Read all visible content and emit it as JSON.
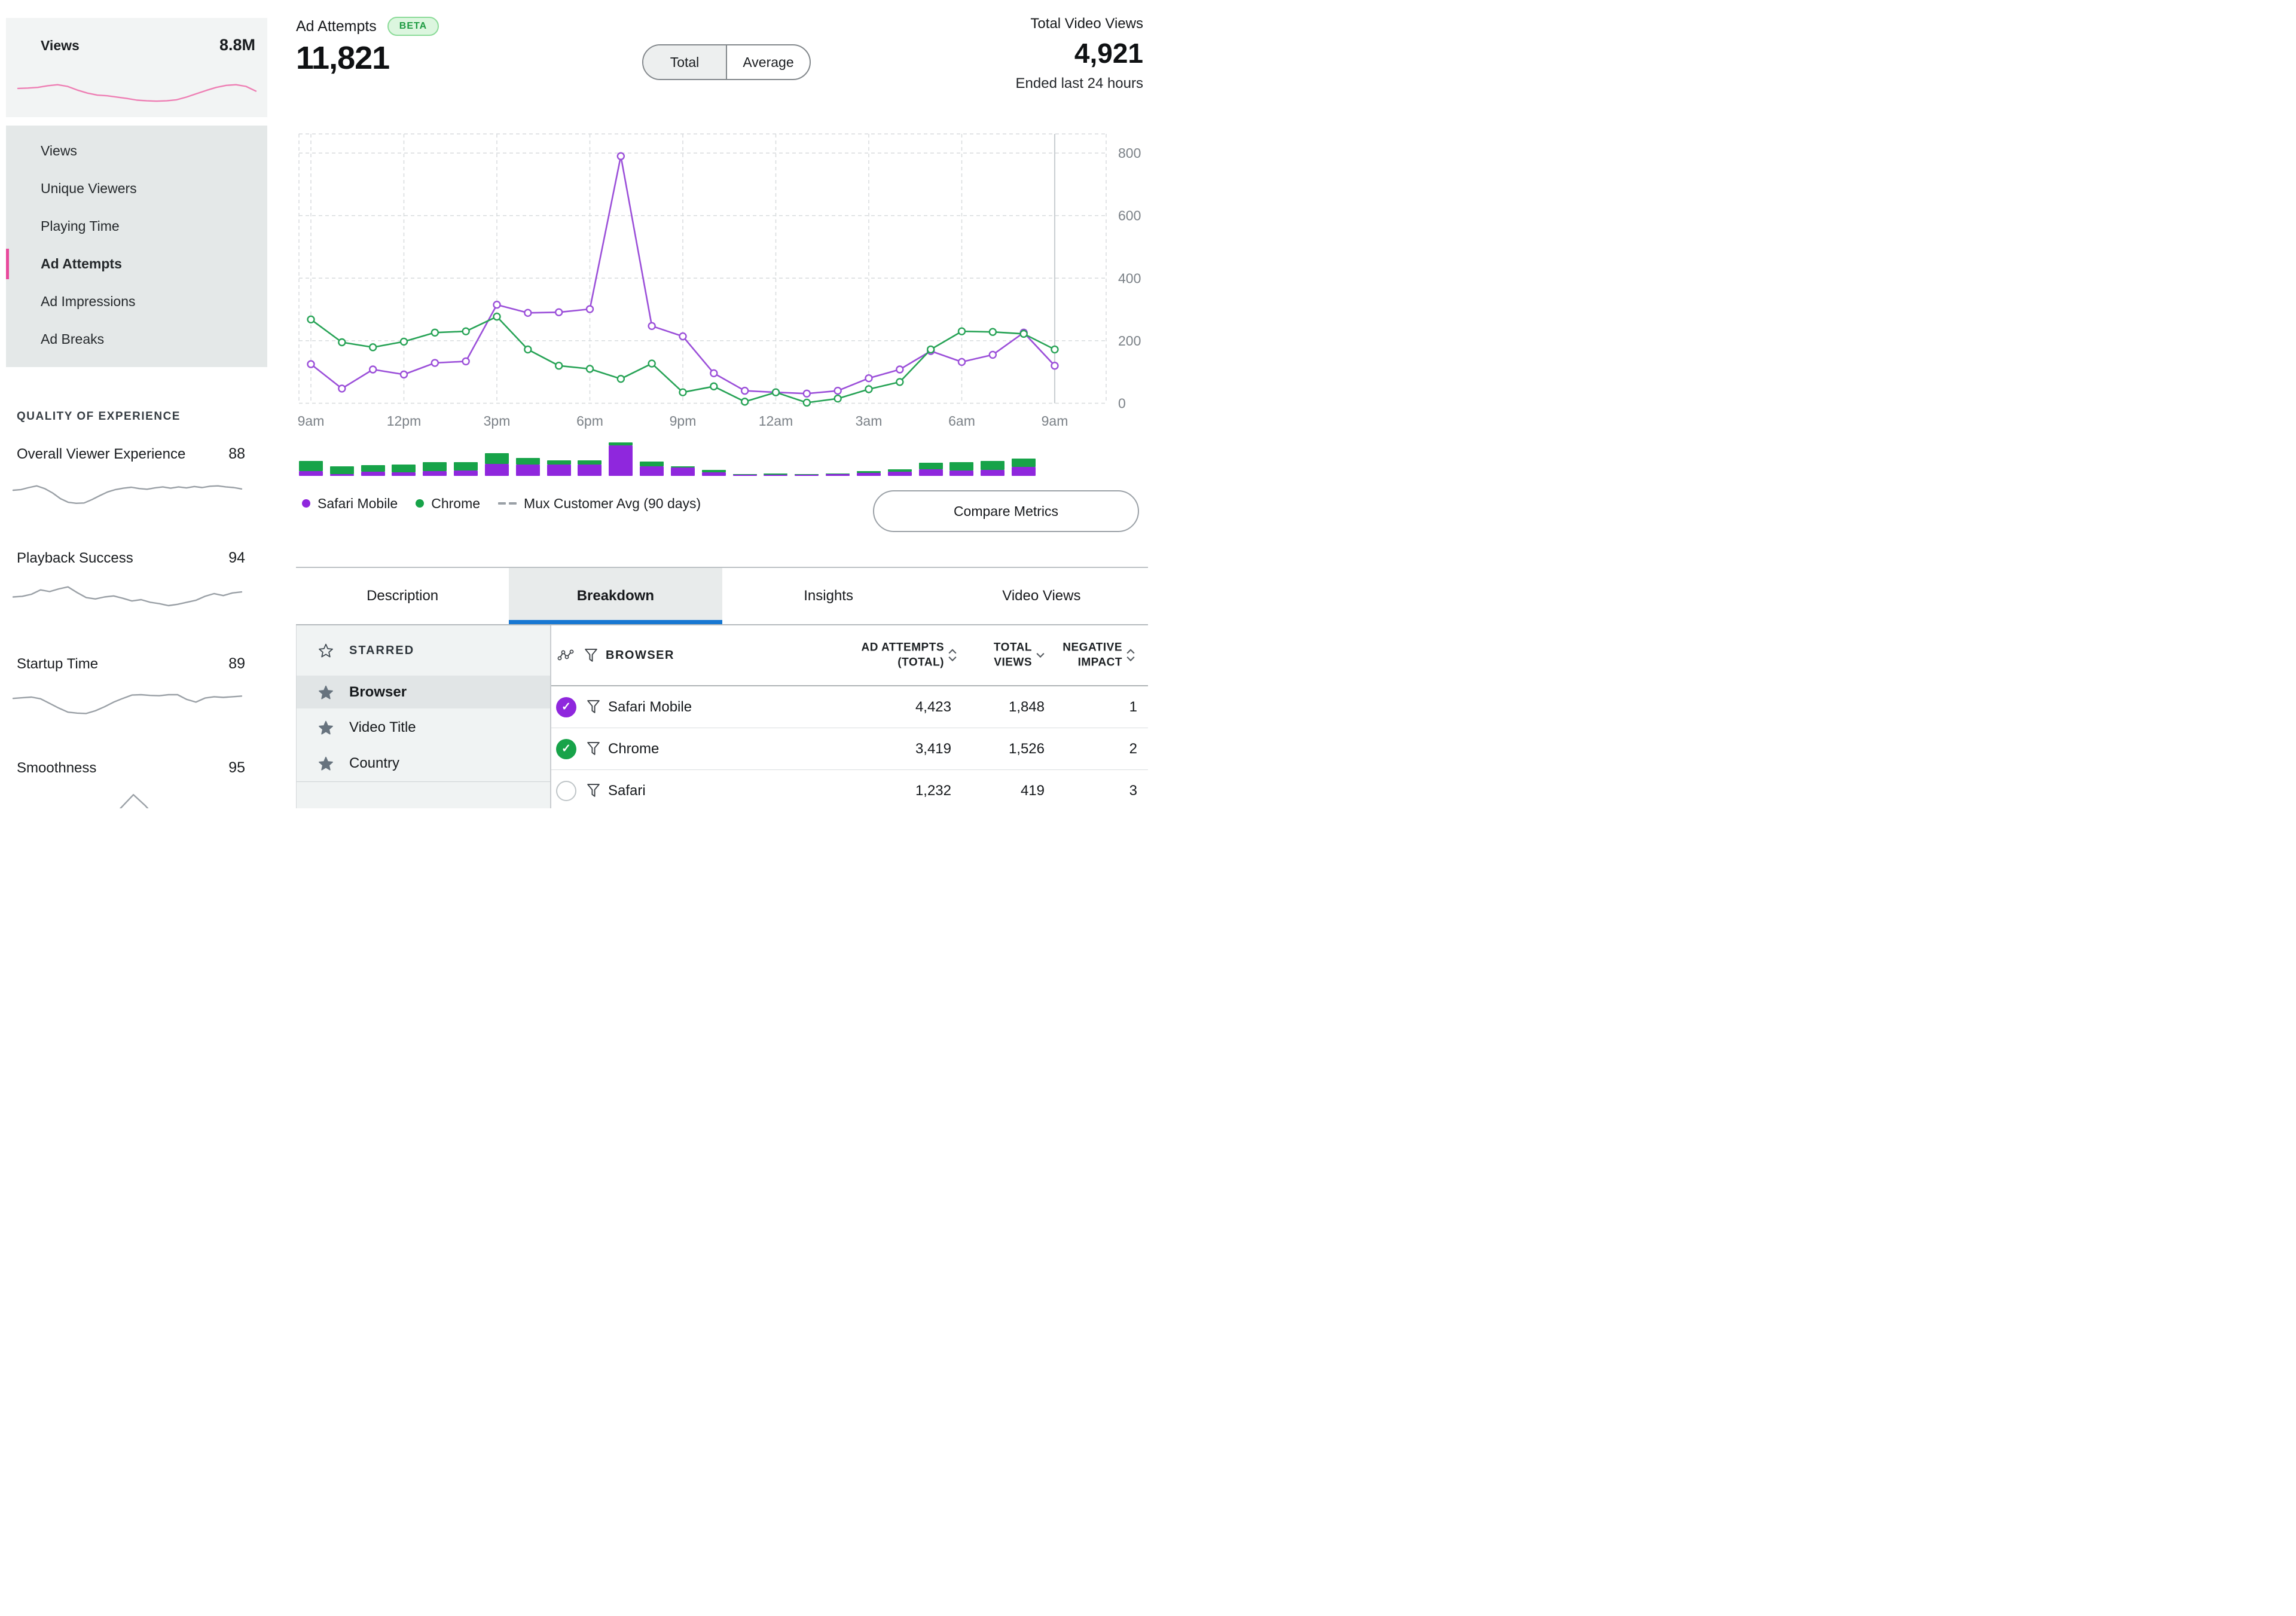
{
  "sidebar": {
    "summary": {
      "label": "Views",
      "value": "8.8M",
      "spark": [
        0.52,
        0.53,
        0.55,
        0.6,
        0.63,
        0.58,
        0.47,
        0.38,
        0.32,
        0.3,
        0.26,
        0.22,
        0.17,
        0.15,
        0.14,
        0.15,
        0.18,
        0.26,
        0.36,
        0.46,
        0.55,
        0.61,
        0.63,
        0.58,
        0.44
      ]
    },
    "menu": {
      "items": [
        "Views",
        "Unique Viewers",
        "Playing Time",
        "Ad Attempts",
        "Ad Impressions",
        "Ad Breaks"
      ],
      "active": "Ad Attempts"
    },
    "qoe": {
      "heading": "QUALITY OF EXPERIENCE",
      "items": [
        {
          "label": "Overall Viewer Experience",
          "value": "88",
          "spark": [
            0.5,
            0.52,
            0.58,
            0.63,
            0.55,
            0.42,
            0.25,
            0.14,
            0.11,
            0.12,
            0.22,
            0.34,
            0.45,
            0.52,
            0.56,
            0.59,
            0.55,
            0.53,
            0.57,
            0.6,
            0.56,
            0.6,
            0.57,
            0.61,
            0.58,
            0.62,
            0.63,
            0.6,
            0.58,
            0.54
          ]
        },
        {
          "label": "Playback Success",
          "value": "94",
          "spark": [
            0.42,
            0.44,
            0.5,
            0.63,
            0.58,
            0.66,
            0.72,
            0.55,
            0.4,
            0.36,
            0.42,
            0.45,
            0.38,
            0.3,
            0.34,
            0.26,
            0.22,
            0.16,
            0.2,
            0.26,
            0.32,
            0.44,
            0.52,
            0.46,
            0.54,
            0.57
          ]
        },
        {
          "label": "Startup Time",
          "value": "89",
          "spark": [
            0.55,
            0.57,
            0.59,
            0.54,
            0.4,
            0.26,
            0.14,
            0.11,
            0.1,
            0.18,
            0.3,
            0.44,
            0.55,
            0.65,
            0.66,
            0.64,
            0.63,
            0.66,
            0.66,
            0.52,
            0.44,
            0.56,
            0.6,
            0.58,
            0.6,
            0.62
          ]
        },
        {
          "label": "Smoothness",
          "value": "95",
          "spark": [
            0.05,
            0.05,
            0.05,
            0.05,
            0.05,
            0.05,
            0.05,
            0.05,
            0.05,
            0.4,
            0.78,
            0.45,
            0.05,
            0.05,
            0.05,
            0.05,
            0.05,
            0.05,
            0.05,
            0.05
          ]
        }
      ]
    }
  },
  "header": {
    "metric_label": "Ad Attempts",
    "beta_badge": "BETA",
    "metric_value": "11,821",
    "toggle": {
      "options": [
        "Total",
        "Average"
      ],
      "active": "Total"
    },
    "totals": {
      "label": "Total Video Views",
      "value": "4,921",
      "subtitle": "Ended last 24 hours"
    }
  },
  "chart_data": {
    "type": "line",
    "x_hours": [
      "9am",
      "10am",
      "11am",
      "12pm",
      "1pm",
      "2pm",
      "3pm",
      "4pm",
      "5pm",
      "6pm",
      "7pm",
      "8pm",
      "9pm",
      "10pm",
      "11pm",
      "12am",
      "1am",
      "2am",
      "3am",
      "4am",
      "5am",
      "6am",
      "7am",
      "8am",
      "9am"
    ],
    "x_tick_labels": [
      "9am",
      "12pm",
      "3pm",
      "6pm",
      "9pm",
      "12am",
      "3am",
      "6am",
      "9am"
    ],
    "ylim": [
      0,
      800
    ],
    "yticks": [
      800,
      600,
      400,
      200,
      0
    ],
    "grid": "dashed",
    "legend_position": "bottom-left",
    "series": [
      {
        "name": "Safari Mobile",
        "color": "#9b4fd9",
        "fill_color": "#8f27dd",
        "values": [
          125,
          47,
          108,
          92,
          129,
          134,
          315,
          289,
          291,
          301,
          790,
          247,
          214,
          96,
          40,
          35,
          31,
          40,
          80,
          108,
          167,
          132,
          155,
          226,
          120
        ]
      },
      {
        "name": "Chrome",
        "color": "#27a356",
        "fill_color": "#17a349",
        "values": [
          268,
          195,
          179,
          197,
          226,
          230,
          277,
          172,
          120,
          110,
          78,
          127,
          35,
          54,
          5,
          35,
          2,
          15,
          45,
          68,
          172,
          230,
          228,
          222,
          172
        ]
      }
    ],
    "bars": {
      "type": "stacked-bar",
      "hours": 24,
      "description": "hourly stacked totals of the two series, Safari Mobile bottom / Chrome top"
    },
    "legend": [
      {
        "label": "Safari Mobile",
        "swatch": "dot",
        "color": "#8f27dd"
      },
      {
        "label": "Chrome",
        "swatch": "dot",
        "color": "#17a349"
      },
      {
        "label": "Mux Customer Avg (90 days)",
        "swatch": "dash",
        "color": "#9aa0a6"
      }
    ]
  },
  "compare_button": "Compare Metrics",
  "tabs": {
    "items": [
      "Description",
      "Breakdown",
      "Insights",
      "Video Views"
    ],
    "active": "Breakdown"
  },
  "breakdown": {
    "dimensions": {
      "starred_header": "STARRED",
      "items": [
        "Browser",
        "Video Title",
        "Country"
      ],
      "active": "Browser"
    },
    "table": {
      "row_label_header": "BROWSER",
      "columns": [
        {
          "line1": "AD ATTEMPTS",
          "line2": "(TOTAL)",
          "sort": "both"
        },
        {
          "line1": "TOTAL",
          "line2": "VIEWS",
          "sort": "down"
        },
        {
          "line1": "NEGATIVE",
          "line2": "IMPACT",
          "sort": "both"
        }
      ],
      "rows": [
        {
          "label": "Safari Mobile",
          "check_color": "#8f27dd",
          "checked": true,
          "values": [
            "4,423",
            "1,848",
            "1"
          ]
        },
        {
          "label": "Chrome",
          "check_color": "#17a349",
          "checked": true,
          "values": [
            "3,419",
            "1,526",
            "2"
          ]
        },
        {
          "label": "Safari",
          "check_color": null,
          "checked": false,
          "values": [
            "1,232",
            "419",
            "3"
          ]
        }
      ]
    }
  }
}
